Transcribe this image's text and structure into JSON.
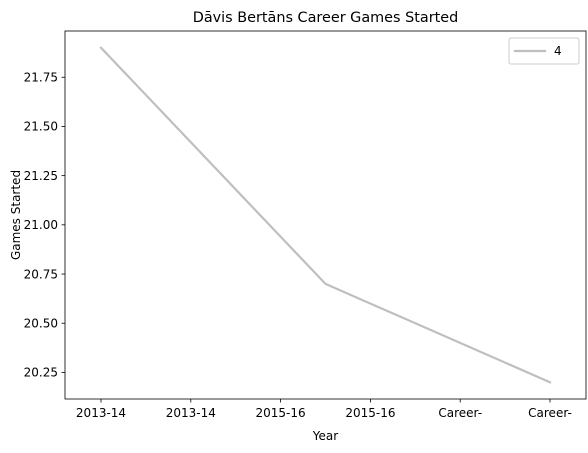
{
  "chart_data": {
    "type": "line",
    "title": "Dāvis Bertāns Career Games Started",
    "xlabel": "Year",
    "ylabel": "Games Started",
    "x": [
      "2013-14",
      "2013-14",
      "2015-16",
      "2015-16",
      "Career-",
      "Career-"
    ],
    "series": [
      {
        "name": "4",
        "color": "#bfbfbf",
        "points": [
          {
            "x_index": 0,
            "y": 21.9
          },
          {
            "x_index": 2.5,
            "y": 20.7
          },
          {
            "x_index": 5,
            "y": 20.2
          }
        ]
      }
    ],
    "ylim": [
      20.115,
      21.985
    ],
    "yticks": [
      20.25,
      20.5,
      20.75,
      21.0,
      21.25,
      21.5,
      21.75
    ],
    "ytick_labels": [
      "20.25",
      "20.50",
      "20.75",
      "21.00",
      "21.25",
      "21.50",
      "21.75"
    ],
    "grid": false,
    "legend": "top-right"
  }
}
